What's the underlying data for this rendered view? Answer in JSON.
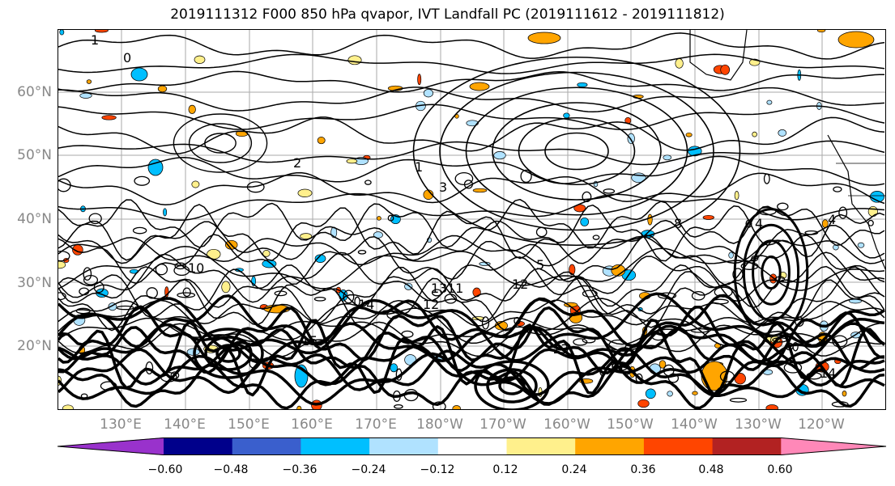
{
  "title": "2019111312 F000 850 hPa qvapor, IVT Landfall PC (2019111612 - 2019111812)",
  "map": {
    "lat_labels": [
      "60°N",
      "50°N",
      "40°N",
      "30°N",
      "20°N"
    ],
    "lon_labels": [
      "130°E",
      "140°E",
      "150°E",
      "160°E",
      "170°E",
      "180°W",
      "170°W",
      "160°W",
      "150°W",
      "140°W",
      "130°W",
      "120°W"
    ],
    "contour_labels": [
      "1",
      "0",
      "2",
      "3",
      "4",
      "5",
      "8",
      "9",
      "10",
      "11",
      "12",
      "13",
      "14",
      "15"
    ],
    "gridlines": true
  },
  "colorbar": {
    "ticks": [
      "−0.60",
      "−0.48",
      "−0.36",
      "−0.24",
      "−0.12",
      "0.12",
      "0.24",
      "0.36",
      "0.48",
      "0.60"
    ],
    "colors": [
      "#9932cc",
      "#00008b",
      "#3a5fcd",
      "#00bfff",
      "#b0e2ff",
      "#ffffff",
      "#fff08c",
      "#ffa500",
      "#ff4500",
      "#b22222",
      "#ff88b8"
    ],
    "extend": "both"
  }
}
